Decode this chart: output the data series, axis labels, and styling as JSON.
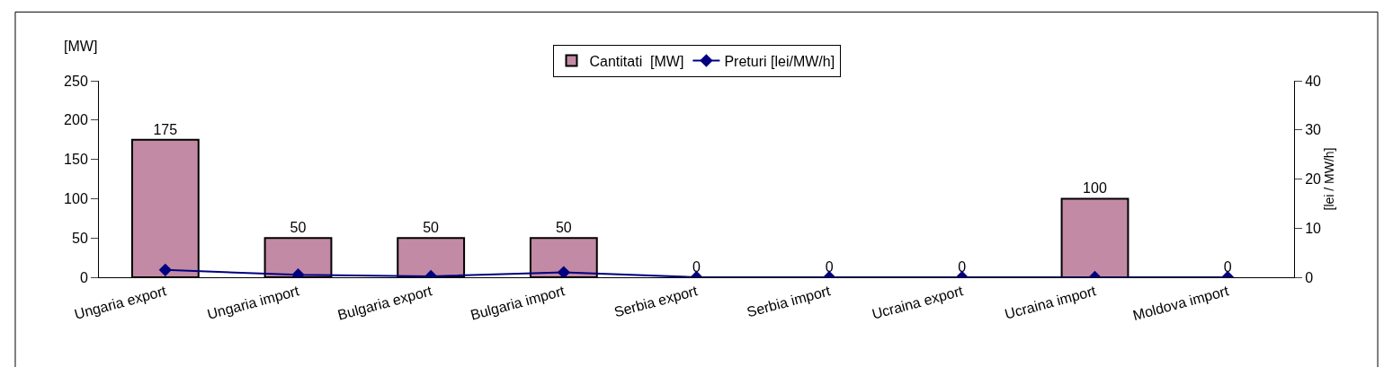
{
  "chart_data": {
    "type": "bar",
    "categories": [
      "Ungaria export",
      "Ungaria import",
      "Bulgaria export",
      "Bulgaria import",
      "Serbia export",
      "Serbia import",
      "Ucraina export",
      "Ucraina import",
      "Moldova import"
    ],
    "series": [
      {
        "name": "Cantitati  [MW]",
        "color": "#c28aa4",
        "values": [
          175,
          50,
          50,
          50,
          0,
          0,
          0,
          100,
          0
        ],
        "data_labels": true
      },
      {
        "name": "Preturi [lei/MW/h]",
        "type": "line",
        "axis": "y2",
        "color": "#000080",
        "marker": "diamond",
        "values": [
          1.5,
          0.5,
          0.2,
          1,
          0,
          0,
          0,
          0,
          0
        ]
      }
    ],
    "ylabel": "[MW]",
    "y2label": "[lei / MW/h]",
    "ylim": [
      0,
      250
    ],
    "yticks": [
      0,
      50,
      100,
      150,
      200,
      250
    ],
    "y2lim": [
      0,
      40
    ],
    "y2ticks": [
      0,
      10,
      20,
      30,
      40
    ],
    "grid": false,
    "legend": "top"
  }
}
